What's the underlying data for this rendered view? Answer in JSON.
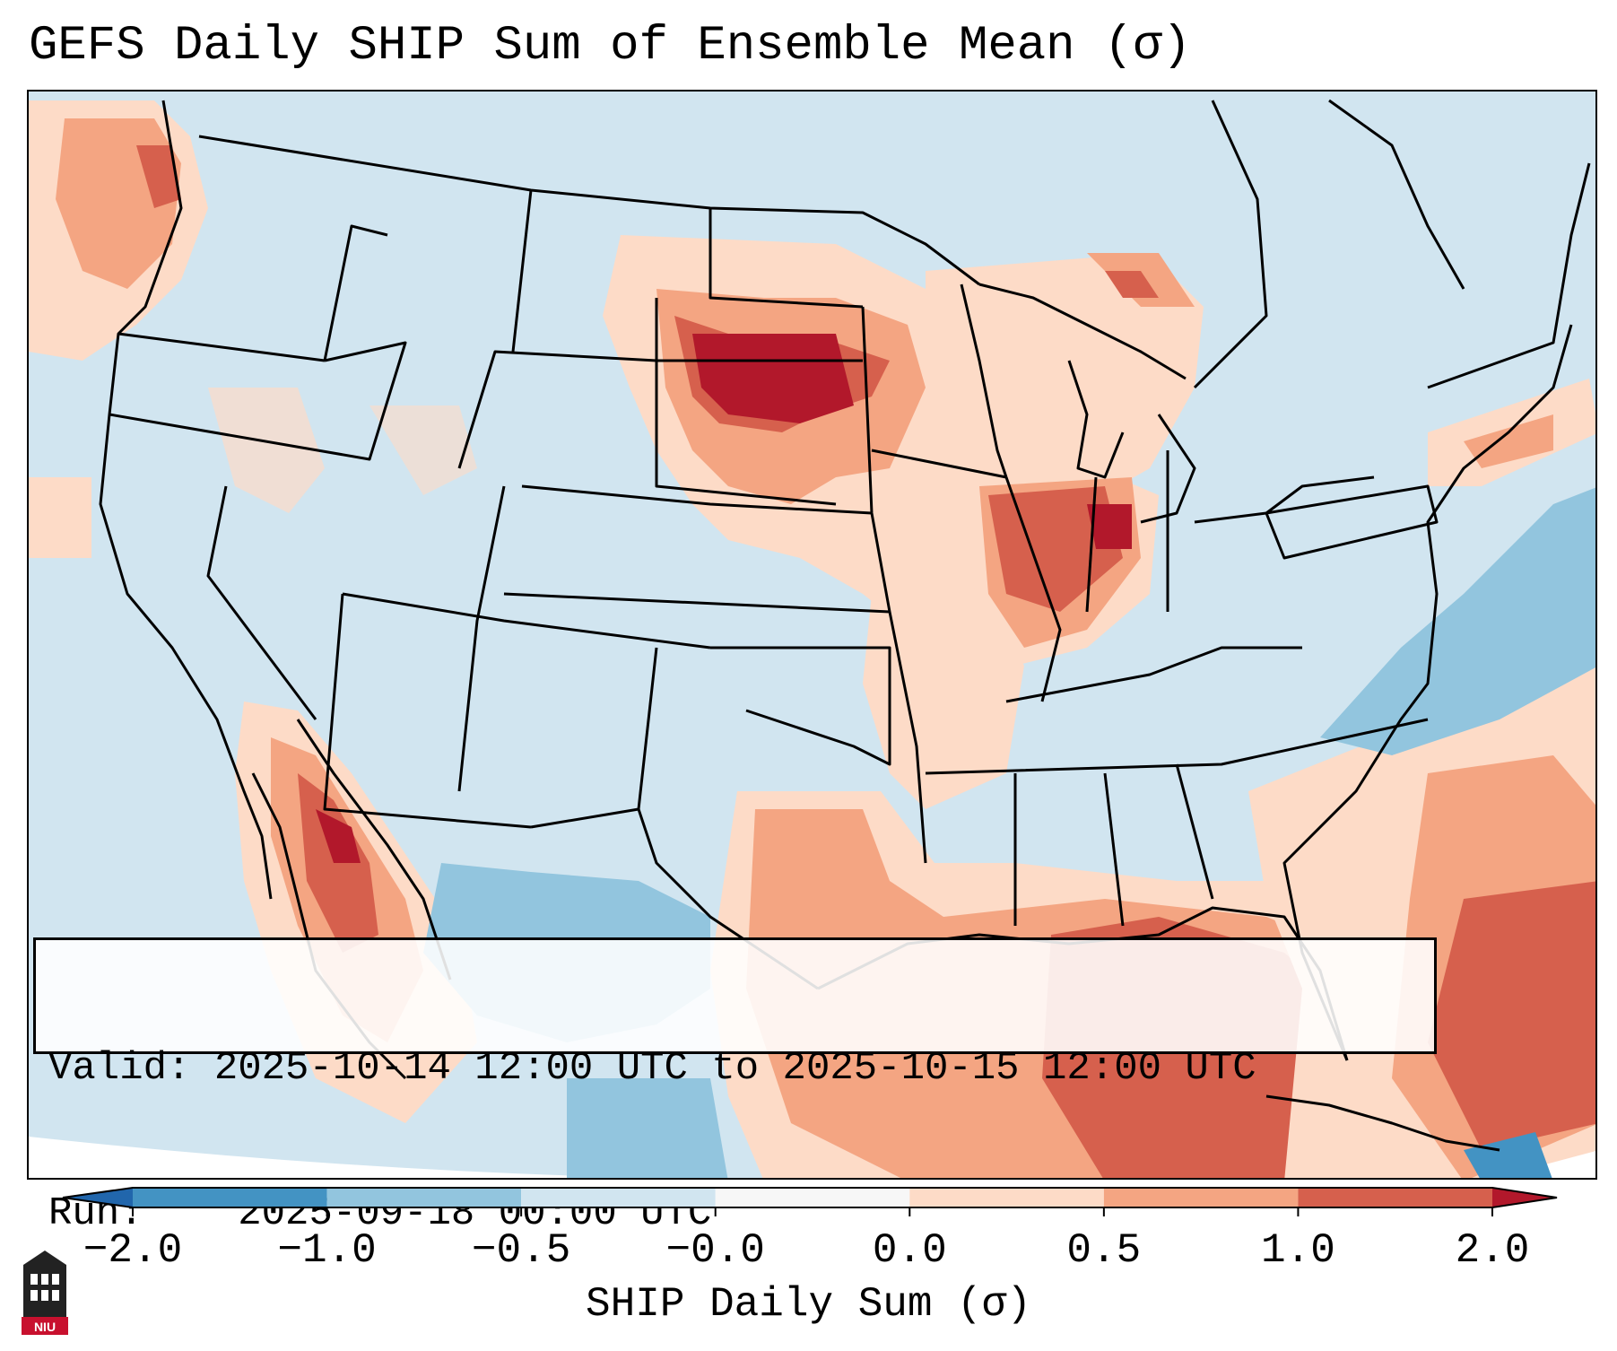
{
  "title": "GEFS Daily SHIP Sum of Ensemble Mean (σ)",
  "info_box": {
    "valid_label": "Valid:",
    "valid_text": "2025-10-14 12:00 UTC to 2025-10-15 12:00 UTC",
    "run_label": "Run:",
    "run_text": "2025-09-18 00:00 UTC"
  },
  "colorbar": {
    "label": "SHIP Daily Sum (σ)",
    "ticks": [
      "−2.0",
      "−1.0",
      "−0.5",
      "−0.0",
      "0.0",
      "0.5",
      "1.0",
      "2.0"
    ],
    "colors": [
      "#2166ac",
      "#4393c3",
      "#92c5de",
      "#d1e5f0",
      "#f7f7f7",
      "#fddbc7",
      "#f4a582",
      "#d6604d",
      "#b2182b"
    ]
  },
  "map": {
    "region": "Contiguous United States",
    "background_color": "#d1e5f0",
    "notable_areas": [
      {
        "name": "Northern Plains (SD/ND)",
        "level": 2.0
      },
      {
        "name": "Upper Midwest (IA/IL/IN)",
        "level": 1.0
      },
      {
        "name": "Gulf of California",
        "level": 1.0
      },
      {
        "name": "Gulf of Mexico",
        "level": 0.5
      },
      {
        "name": "Pacific Northwest coast",
        "level": 0.5
      },
      {
        "name": "Western Atlantic",
        "level": -0.5
      },
      {
        "name": "Texas / Southern Plains",
        "level": -0.5
      }
    ]
  },
  "logo": {
    "text": "NIU",
    "color": "#c8102e"
  }
}
